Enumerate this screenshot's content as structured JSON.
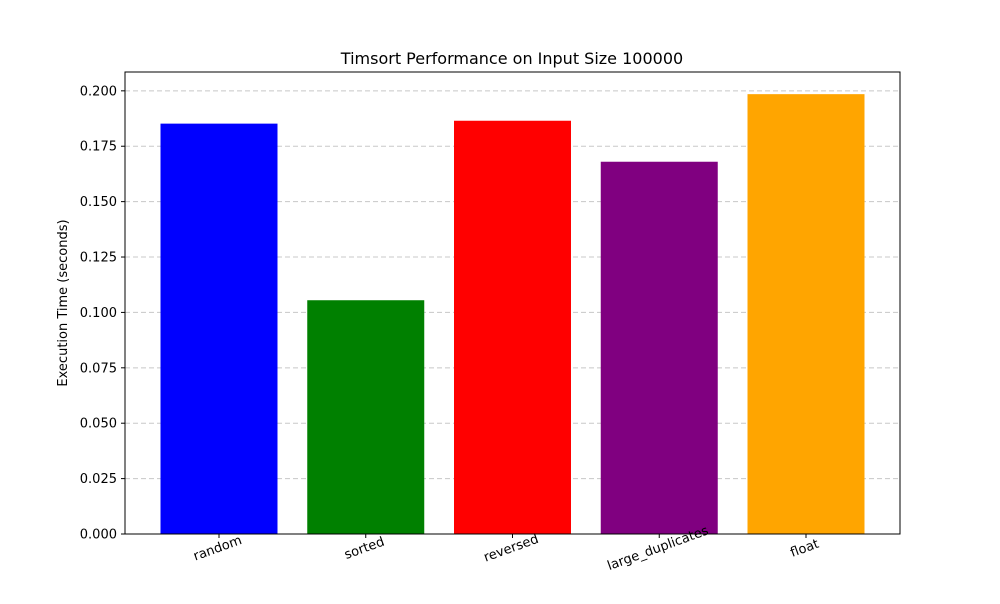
{
  "chart_data": {
    "type": "bar",
    "title": "Timsort Performance on Input Size 100000",
    "xlabel": "",
    "ylabel": "Execution Time (seconds)",
    "categories": [
      "random",
      "sorted",
      "reversed",
      "large_duplicates",
      "float"
    ],
    "values": [
      0.1852,
      0.1055,
      0.1865,
      0.168,
      0.1985
    ],
    "colors": [
      "#0000ff",
      "#008000",
      "#ff0000",
      "#800080",
      "#ffa500"
    ],
    "ylim": [
      0,
      0.2085
    ],
    "yticks": [
      0.0,
      0.025,
      0.05,
      0.075,
      0.1,
      0.125,
      0.15,
      0.175,
      0.2
    ],
    "ytick_labels": [
      "0.000",
      "0.025",
      "0.050",
      "0.075",
      "0.100",
      "0.125",
      "0.150",
      "0.175",
      "0.200"
    ],
    "grid": {
      "axis": "y",
      "style": "dashed",
      "color": "#c8c8c8"
    },
    "xtick_rotation_deg": -20
  }
}
